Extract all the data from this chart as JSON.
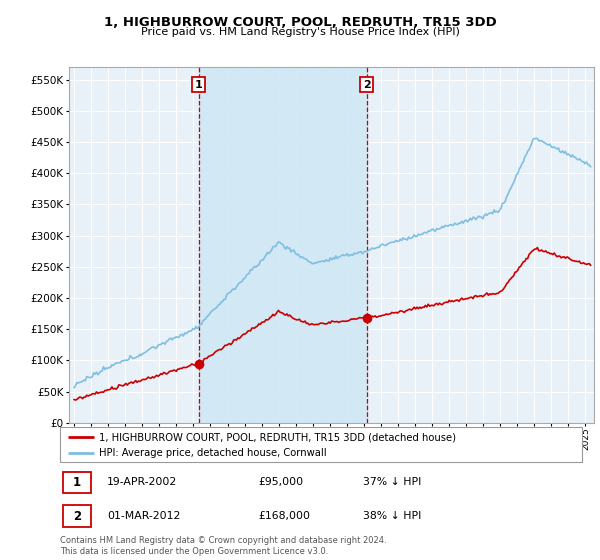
{
  "title": "1, HIGHBURROW COURT, POOL, REDRUTH, TR15 3DD",
  "subtitle": "Price paid vs. HM Land Registry's House Price Index (HPI)",
  "hpi_label": "HPI: Average price, detached house, Cornwall",
  "property_label": "1, HIGHBURROW COURT, POOL, REDRUTH, TR15 3DD (detached house)",
  "footnote": "Contains HM Land Registry data © Crown copyright and database right 2024.\nThis data is licensed under the Open Government Licence v3.0.",
  "sale1_label": "1",
  "sale1_date": "19-APR-2002",
  "sale1_price": "£95,000",
  "sale1_hpi": "37% ↓ HPI",
  "sale2_label": "2",
  "sale2_date": "01-MAR-2012",
  "sale2_price": "£168,000",
  "sale2_hpi": "38% ↓ HPI",
  "sale1_x": 2002.3,
  "sale1_y": 95000,
  "sale2_x": 2012.17,
  "sale2_y": 168000,
  "hpi_color": "#7fbfdf",
  "property_color": "#cc0000",
  "vline_color": "#cc0000",
  "shade_color": "#d0e8f5",
  "background_color": "#ffffff",
  "plot_bg_color": "#e8f0f8",
  "grid_color": "#ffffff",
  "ylim": [
    0,
    570000
  ],
  "yticks": [
    0,
    50000,
    100000,
    150000,
    200000,
    250000,
    300000,
    350000,
    400000,
    450000,
    500000,
    550000
  ],
  "xlim_start": 1994.7,
  "xlim_end": 2025.5
}
